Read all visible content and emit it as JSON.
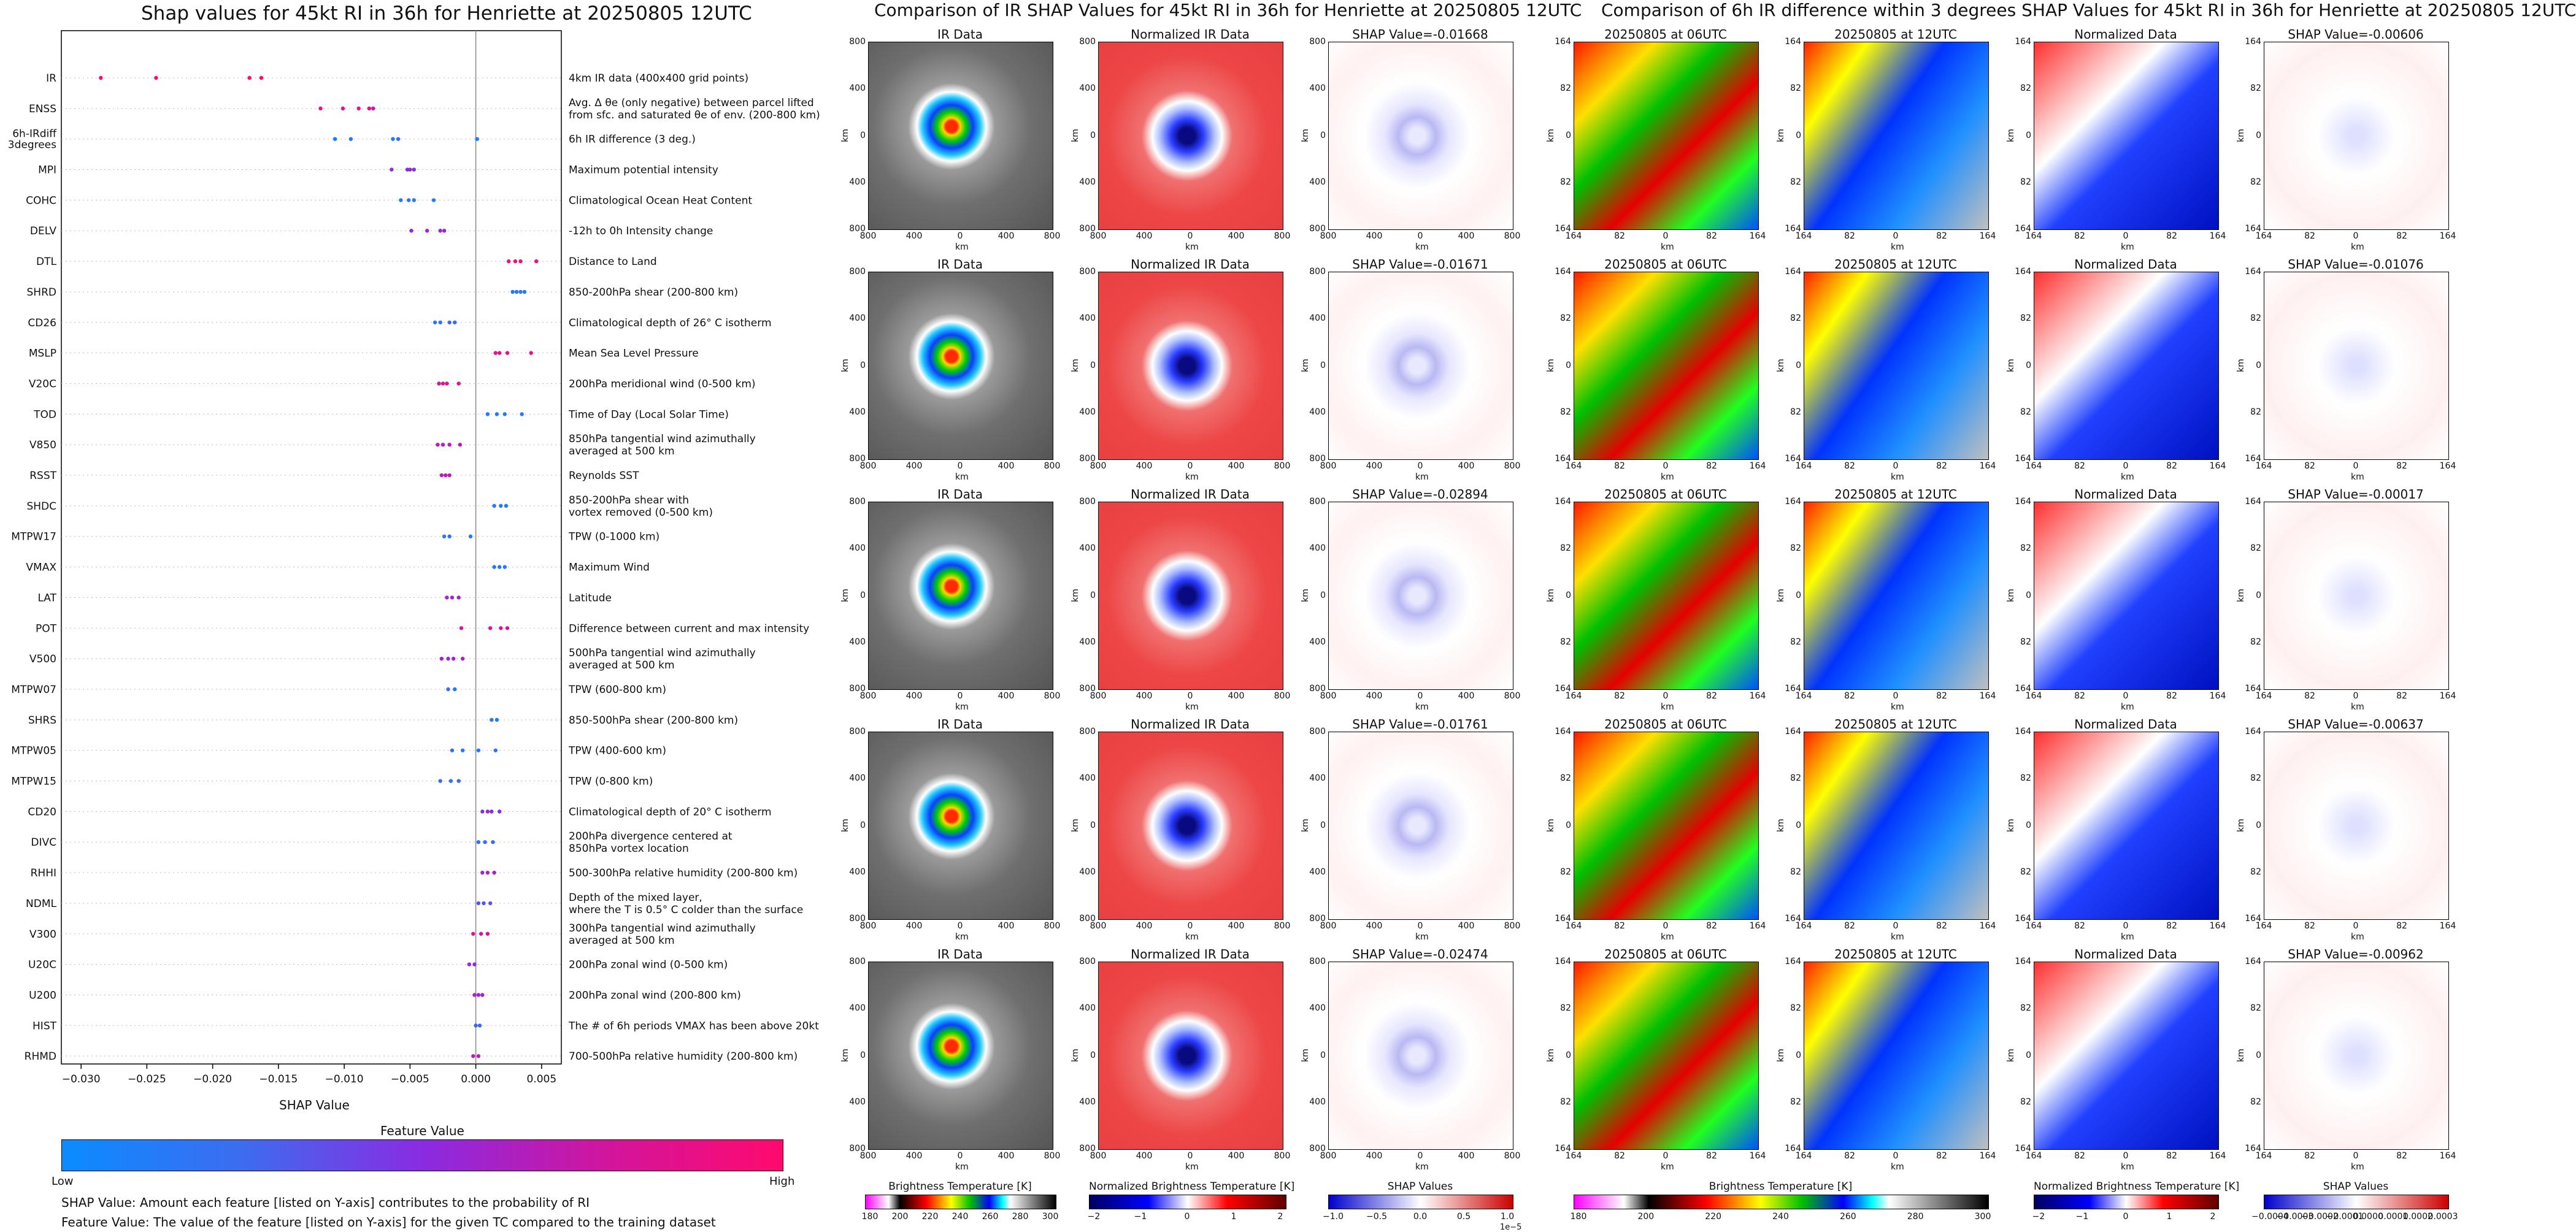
{
  "left": {
    "title": "Shap values for 45kt RI in 36h for Henriette at 20250805 12UTC",
    "xlabel": "SHAP Value",
    "colorbar_title": "Feature Value",
    "colorbar_low": "Low",
    "colorbar_high": "High",
    "note1": "SHAP Value: Amount each feature [listed on Y-axis] contributes to the probability of RI",
    "note2": "Feature Value: The value of the feature [listed on Y-axis] for the given TC compared to the training dataset"
  },
  "chart_data": [
    {
      "type": "scatter",
      "title": "Shap values for 45kt RI in 36h for Henriette at 20250805 12UTC",
      "xlabel": "SHAP Value",
      "xlim": [
        -0.0315,
        0.0065
      ],
      "xticks": [
        "−0.030",
        "−0.025",
        "−0.020",
        "−0.015",
        "−0.010",
        "−0.005",
        "0.000",
        "0.005"
      ],
      "xtick_values": [
        -0.03,
        -0.025,
        -0.02,
        -0.015,
        -0.01,
        -0.005,
        0.0,
        0.005
      ],
      "color_scale": {
        "low": "#0a8cff",
        "mid": "#8a2be2",
        "high": "#ff0a6e"
      },
      "features": [
        {
          "name": "IR",
          "desc": "4km IR data (400x400 grid points)",
          "points": [
            [
              -0.0285,
              1
            ],
            [
              -0.0243,
              1
            ],
            [
              -0.0172,
              1
            ],
            [
              -0.0163,
              1
            ]
          ]
        },
        {
          "name": "ENSS",
          "desc": "Avg. Δ θe (only negative) between parcel lifted\nfrom sfc. and saturated θe of env. (200-800 km)",
          "points": [
            [
              -0.0118,
              0.9
            ],
            [
              -0.0101,
              0.85
            ],
            [
              -0.0089,
              0.9
            ],
            [
              -0.0081,
              0.85
            ],
            [
              -0.0078,
              0.8
            ]
          ]
        },
        {
          "name": "6h-IRdiff\n3degrees",
          "desc": "6h IR difference (3 deg.)",
          "points": [
            [
              -0.0107,
              0.1
            ],
            [
              -0.0095,
              0.1
            ],
            [
              -0.0063,
              0.1
            ],
            [
              -0.0059,
              0.15
            ],
            [
              0.0001,
              0.1
            ]
          ]
        },
        {
          "name": "MPI",
          "desc": "Maximum potential intensity",
          "points": [
            [
              -0.0064,
              0.55
            ],
            [
              -0.0052,
              0.5
            ],
            [
              -0.005,
              0.55
            ],
            [
              -0.0047,
              0.5
            ]
          ]
        },
        {
          "name": "COHC",
          "desc": "Climatological Ocean Heat Content",
          "points": [
            [
              -0.0057,
              0.1
            ],
            [
              -0.0051,
              0.1
            ],
            [
              -0.0047,
              0.1
            ],
            [
              -0.0032,
              0.1
            ]
          ]
        },
        {
          "name": "DELV",
          "desc": "-12h to 0h Intensity change",
          "points": [
            [
              -0.0049,
              0.5
            ],
            [
              -0.0037,
              0.55
            ],
            [
              -0.0027,
              0.6
            ],
            [
              -0.0024,
              0.55
            ]
          ]
        },
        {
          "name": "DTL",
          "desc": "Distance to Land",
          "points": [
            [
              0.0025,
              0.95
            ],
            [
              0.003,
              0.95
            ],
            [
              0.0034,
              0.95
            ],
            [
              0.0046,
              0.95
            ]
          ]
        },
        {
          "name": "SHRD",
          "desc": "850-200hPa shear (200-800 km)",
          "points": [
            [
              0.0028,
              0.1
            ],
            [
              0.0031,
              0.1
            ],
            [
              0.0034,
              0.1
            ],
            [
              0.0037,
              0.1
            ]
          ]
        },
        {
          "name": "CD26",
          "desc": "Climatological depth of 26° C isotherm",
          "points": [
            [
              -0.0031,
              0.1
            ],
            [
              -0.0027,
              0.15
            ],
            [
              -0.002,
              0.2
            ],
            [
              -0.0016,
              0.15
            ]
          ]
        },
        {
          "name": "MSLP",
          "desc": "Mean Sea Level Pressure",
          "points": [
            [
              0.0015,
              0.9
            ],
            [
              0.0018,
              0.85
            ],
            [
              0.0024,
              0.9
            ],
            [
              0.0042,
              0.95
            ]
          ]
        },
        {
          "name": "V20C",
          "desc": "200hPa meridional wind (0-500 km)",
          "points": [
            [
              -0.0028,
              0.8
            ],
            [
              -0.0025,
              0.85
            ],
            [
              -0.0022,
              0.8
            ],
            [
              -0.0013,
              0.85
            ]
          ]
        },
        {
          "name": "TOD",
          "desc": "Time of Day (Local Solar Time)",
          "points": [
            [
              0.0009,
              0.1
            ],
            [
              0.0016,
              0.1
            ],
            [
              0.0022,
              0.1
            ],
            [
              0.0035,
              0.1
            ]
          ]
        },
        {
          "name": "V850",
          "desc": "850hPa tangential wind azimuthally\naveraged at 500 km",
          "points": [
            [
              -0.0029,
              0.7
            ],
            [
              -0.0025,
              0.65
            ],
            [
              -0.002,
              0.7
            ],
            [
              -0.0012,
              0.7
            ]
          ]
        },
        {
          "name": "RSST",
          "desc": "Reynolds SST",
          "points": [
            [
              -0.0026,
              0.65
            ],
            [
              -0.0023,
              0.7
            ],
            [
              -0.002,
              0.7
            ]
          ]
        },
        {
          "name": "SHDC",
          "desc": "850-200hPa shear with\nvortex removed (0-500 km)",
          "points": [
            [
              0.0014,
              0.1
            ],
            [
              0.0019,
              0.1
            ],
            [
              0.0023,
              0.1
            ]
          ]
        },
        {
          "name": "MTPW17",
          "desc": "TPW (0-1000 km)",
          "points": [
            [
              -0.0024,
              0.1
            ],
            [
              -0.002,
              0.15
            ],
            [
              -0.0004,
              0.1
            ]
          ]
        },
        {
          "name": "VMAX",
          "desc": "Maximum Wind",
          "points": [
            [
              0.0014,
              0.1
            ],
            [
              0.0018,
              0.1
            ],
            [
              0.0022,
              0.1
            ]
          ]
        },
        {
          "name": "LAT",
          "desc": "Latitude",
          "points": [
            [
              -0.0022,
              0.55
            ],
            [
              -0.0018,
              0.6
            ],
            [
              -0.0013,
              0.6
            ]
          ]
        },
        {
          "name": "POT",
          "desc": "Difference between current and max intensity",
          "points": [
            [
              -0.0011,
              0.9
            ],
            [
              0.0011,
              0.85
            ],
            [
              0.0019,
              0.85
            ],
            [
              0.0024,
              0.8
            ]
          ]
        },
        {
          "name": "V500",
          "desc": "500hPa tangential wind azimuthally\naveraged at 500 km",
          "points": [
            [
              -0.0026,
              0.6
            ],
            [
              -0.0021,
              0.55
            ],
            [
              -0.0017,
              0.6
            ],
            [
              -0.001,
              0.65
            ]
          ]
        },
        {
          "name": "MTPW07",
          "desc": "TPW (600-800 km)",
          "points": [
            [
              -0.0021,
              0.15
            ],
            [
              -0.0016,
              0.1
            ]
          ]
        },
        {
          "name": "SHRS",
          "desc": "850-500hPa shear (200-800 km)",
          "points": [
            [
              0.0012,
              0.1
            ],
            [
              0.0016,
              0.1
            ]
          ]
        },
        {
          "name": "MTPW05",
          "desc": "TPW (400-600 km)",
          "points": [
            [
              -0.0018,
              0.15
            ],
            [
              -0.001,
              0.1
            ],
            [
              0.0002,
              0.1
            ],
            [
              0.0015,
              0.15
            ]
          ]
        },
        {
          "name": "MTPW15",
          "desc": "TPW (0-800 km)",
          "points": [
            [
              -0.0027,
              0.2
            ],
            [
              -0.0019,
              0.15
            ],
            [
              -0.0013,
              0.2
            ]
          ]
        },
        {
          "name": "CD20",
          "desc": "Climatological depth of 20° C isotherm",
          "points": [
            [
              0.0005,
              0.5
            ],
            [
              0.0009,
              0.55
            ],
            [
              0.0012,
              0.5
            ],
            [
              0.0018,
              0.5
            ]
          ]
        },
        {
          "name": "DIVC",
          "desc": "200hPa divergence centered at\n850hPa vortex location",
          "points": [
            [
              0.0002,
              0.15
            ],
            [
              0.0007,
              0.15
            ],
            [
              0.0013,
              0.15
            ]
          ]
        },
        {
          "name": "RHHI",
          "desc": "500-300hPa relative humidity (200-800 km)",
          "points": [
            [
              0.0005,
              0.6
            ],
            [
              0.0009,
              0.6
            ],
            [
              0.0014,
              0.6
            ]
          ]
        },
        {
          "name": "NDML",
          "desc": "Depth of the mixed layer,\nwhere the T is 0.5° C colder than the surface",
          "points": [
            [
              0.0002,
              0.3
            ],
            [
              0.0006,
              0.3
            ],
            [
              0.0011,
              0.3
            ]
          ]
        },
        {
          "name": "V300",
          "desc": "300hPa tangential wind azimuthally\naveraged at 500 km",
          "points": [
            [
              -0.0002,
              0.8
            ],
            [
              0.0004,
              0.75
            ],
            [
              0.0009,
              0.8
            ]
          ]
        },
        {
          "name": "U20C",
          "desc": "200hPa zonal wind (0-500 km)",
          "points": [
            [
              -0.0005,
              0.55
            ],
            [
              -0.0001,
              0.55
            ]
          ]
        },
        {
          "name": "U200",
          "desc": "200hPa zonal wind (200-800 km)",
          "points": [
            [
              -0.0001,
              0.6
            ],
            [
              0.0002,
              0.6
            ],
            [
              0.0005,
              0.6
            ]
          ]
        },
        {
          "name": "HIST",
          "desc": "The # of 6h periods VMAX has been above 20kt",
          "points": [
            [
              0.0,
              0.2
            ],
            [
              0.0003,
              0.2
            ]
          ]
        },
        {
          "name": "RHMD",
          "desc": "700-500hPa relative humidity (200-800 km)",
          "points": [
            [
              -0.0002,
              0.7
            ],
            [
              0.0002,
              0.7
            ]
          ]
        }
      ]
    },
    {
      "type": "heatmap",
      "title": "Comparison of IR SHAP Values for 45kt RI in 36h for Henriette at 20250805 12UTC",
      "column_titles": [
        "IR Data",
        "Normalized IR Data"
      ],
      "shap_titles": [
        "SHAP Value=-0.01668",
        "SHAP Value=-0.01671",
        "SHAP Value=-0.02894",
        "SHAP Value=-0.01761",
        "SHAP Value=-0.02474"
      ],
      "ticks": [
        "800",
        "400",
        "0",
        "400",
        "800"
      ],
      "xticks": [
        "800",
        "400",
        "0",
        "400",
        "800"
      ],
      "axis_label": "km",
      "colorbars": [
        {
          "label": "Brightness Temperature [K]",
          "ticks": [
            "180",
            "200",
            "220",
            "240",
            "260",
            "280",
            "300"
          ]
        },
        {
          "label": "Normalized Brightness Temperature [K]",
          "ticks": [
            "−2",
            "−1",
            "0",
            "1",
            "2"
          ]
        },
        {
          "label": "SHAP Values",
          "ticks": [
            "−1.0",
            "−0.5",
            "0.0",
            "0.5",
            "1.0"
          ],
          "offset": "1e−5"
        }
      ]
    },
    {
      "type": "heatmap",
      "title": "Comparison of 6h IR difference within 3 degrees SHAP Values for 45kt RI in 36h for Henriette at 20250805 12UTC",
      "column_titles": [
        "20250805 at 06UTC",
        "20250805 at 12UTC",
        "Normalized Data"
      ],
      "shap_titles": [
        "SHAP Value=-0.00606",
        "SHAP Value=-0.01076",
        "SHAP Value=-0.00017",
        "SHAP Value=-0.00637",
        "SHAP Value=-0.00962"
      ],
      "ticks": [
        "164",
        "82",
        "0",
        "82",
        "164"
      ],
      "xticks": [
        "164",
        "82",
        "0",
        "82",
        "164"
      ],
      "axis_label": "km",
      "colorbars": [
        {
          "label": "Brightness Temperature [K]",
          "ticks": [
            "180",
            "200",
            "220",
            "240",
            "260",
            "280",
            "300"
          ]
        },
        {
          "label": "Normalized Brightness Temperature [K]",
          "ticks": [
            "−2",
            "−1",
            "0",
            "1",
            "2"
          ]
        },
        {
          "label": "SHAP Values",
          "ticks": [
            "−0.0004",
            "−0.0003",
            "−0.0002",
            "−0.0001",
            "0.0000",
            "0.0001",
            "0.0002",
            "0.0003"
          ]
        }
      ]
    }
  ]
}
